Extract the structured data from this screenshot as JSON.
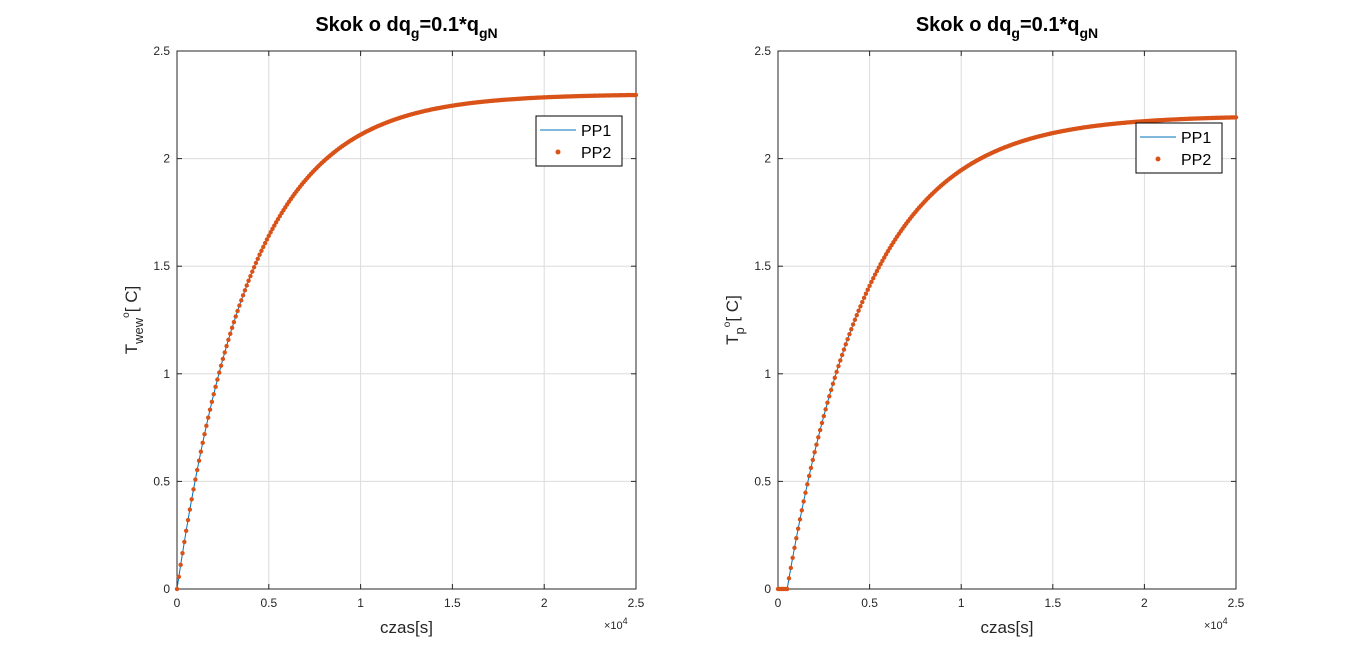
{
  "colors": {
    "pp1": "#0072BD",
    "pp2": "#D95319",
    "grid": "#dcdcdc",
    "axis": "#262626"
  },
  "chart_data": [
    {
      "type": "line",
      "title": {
        "main": "Skok o dq",
        "sub1": "g",
        "mid": "=0.1*q",
        "sub2": "gN"
      },
      "xlabel": "czas[s]",
      "ylabel": {
        "main": "T",
        "sub": "wew",
        "sup": "o",
        "tail": "[ C]"
      },
      "xlim": [
        0,
        25000
      ],
      "ylim": [
        0,
        2.5
      ],
      "x_ticks": [
        "0",
        "0.5",
        "1",
        "1.5",
        "2",
        "2.5"
      ],
      "y_ticks": [
        "0",
        "0.5",
        "1",
        "1.5",
        "2",
        "2.5"
      ],
      "x_multiplier": {
        "base": "×10",
        "exp": "4"
      },
      "grid": true,
      "legend_position": "top-right",
      "series": [
        {
          "name": "PP1",
          "style": "line",
          "final": 2.3,
          "tau": 4000,
          "delay": 0
        },
        {
          "name": "PP2",
          "style": "dots",
          "final": 2.3,
          "tau": 4000,
          "delay": 0
        }
      ]
    },
    {
      "type": "line",
      "title": {
        "main": "Skok o dq",
        "sub1": "g",
        "mid": "=0.1*q",
        "sub2": "gN"
      },
      "xlabel": "czas[s]",
      "ylabel": {
        "main": "T",
        "sub": "p",
        "sup": "o",
        "tail": "[ C]"
      },
      "xlim": [
        0,
        25000
      ],
      "ylim": [
        0,
        2.5
      ],
      "x_ticks": [
        "0",
        "0.5",
        "1",
        "1.5",
        "2",
        "2.5"
      ],
      "y_ticks": [
        "0",
        "0.5",
        "1",
        "1.5",
        "2",
        "2.5"
      ],
      "x_multiplier": {
        "base": "×10",
        "exp": "4"
      },
      "grid": true,
      "legend_position": "top-right",
      "series": [
        {
          "name": "PP1",
          "style": "line",
          "final": 2.2,
          "tau": 4400,
          "delay": 500
        },
        {
          "name": "PP2",
          "style": "dots",
          "final": 2.2,
          "tau": 4400,
          "delay": 500
        }
      ]
    }
  ]
}
